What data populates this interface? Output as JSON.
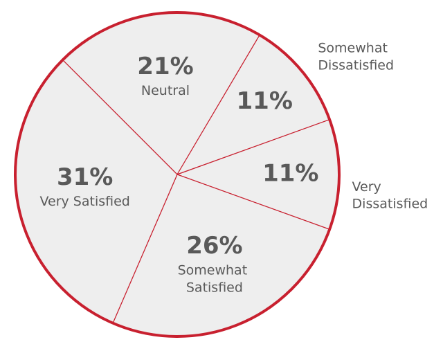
{
  "chart_data": {
    "type": "pie",
    "categories": [
      "Neutral",
      "Somewhat Dissatisfied",
      "Very Dissatisfied",
      "Somewhat Satisfied",
      "Very Satisfied"
    ],
    "values": [
      21,
      11,
      11,
      26,
      31
    ],
    "value_labels": [
      "21%",
      "11%",
      "11%",
      "26%",
      "31%"
    ],
    "color": "#eeeeee",
    "edge_color": "#c8202f"
  }
}
